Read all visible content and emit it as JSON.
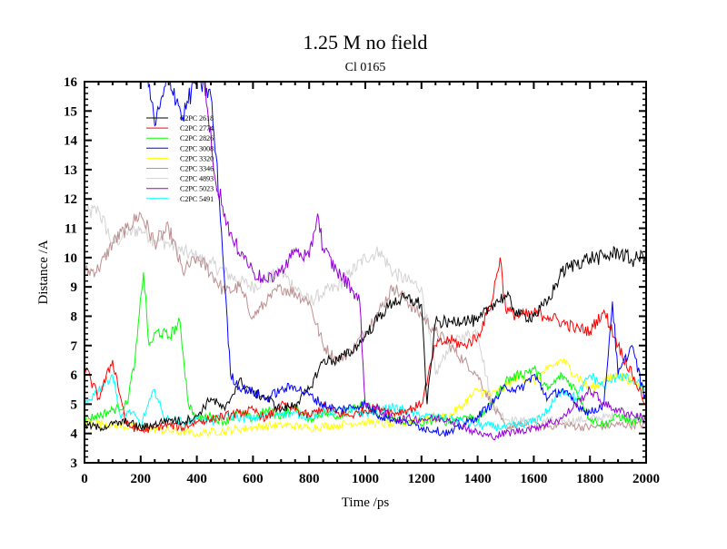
{
  "chart_data": {
    "type": "line",
    "title": "1.25 M no field",
    "subtitle": "Cl 0165",
    "xlabel": "Time /ps",
    "ylabel": "Distance /A",
    "xlim": [
      0,
      2000
    ],
    "ylim": [
      3,
      16
    ],
    "xticks": [
      0,
      200,
      400,
      600,
      800,
      1000,
      1200,
      1400,
      1600,
      1800,
      2000
    ],
    "yticks": [
      3,
      4,
      5,
      6,
      7,
      8,
      9,
      10,
      11,
      12,
      13,
      14,
      15,
      16
    ],
    "grid": false,
    "legend_position": "top-left",
    "series": [
      {
        "name": "C2PC 2618",
        "color": "#000000",
        "x": [
          0,
          50,
          100,
          150,
          200,
          250,
          300,
          350,
          400,
          450,
          500,
          550,
          600,
          650,
          700,
          750,
          800,
          850,
          900,
          950,
          1000,
          1050,
          1100,
          1150,
          1200,
          1220,
          1250,
          1300,
          1350,
          1400,
          1450,
          1500,
          1550,
          1600,
          1650,
          1700,
          1750,
          1800,
          1850,
          1900,
          1950,
          2000
        ],
        "y": [
          4.3,
          4.2,
          4.3,
          4.4,
          4.2,
          4.3,
          4.5,
          4.4,
          4.6,
          5.2,
          4.8,
          5.8,
          5.4,
          5.2,
          4.8,
          5.0,
          5.5,
          6.5,
          6.5,
          6.8,
          7.3,
          8.0,
          8.5,
          8.6,
          8.4,
          5.0,
          7.8,
          7.8,
          7.9,
          7.8,
          8.4,
          8.7,
          8.0,
          8.0,
          8.5,
          9.5,
          9.8,
          10.0,
          10.0,
          10.2,
          9.9,
          10.1
        ]
      },
      {
        "name": "C2PC 2774",
        "color": "#ff0000",
        "x": [
          0,
          50,
          100,
          150,
          200,
          250,
          300,
          350,
          400,
          450,
          500,
          550,
          600,
          650,
          700,
          750,
          800,
          850,
          900,
          950,
          1000,
          1050,
          1100,
          1150,
          1200,
          1250,
          1300,
          1350,
          1400,
          1450,
          1480,
          1500,
          1550,
          1600,
          1650,
          1700,
          1750,
          1800,
          1850,
          1900,
          1950,
          2000
        ],
        "y": [
          6.3,
          5.2,
          6.5,
          4.3,
          4.1,
          4.2,
          4.3,
          4.2,
          4.4,
          4.5,
          4.6,
          4.7,
          4.8,
          4.5,
          5.0,
          4.8,
          4.6,
          4.9,
          4.7,
          4.6,
          4.8,
          4.9,
          4.7,
          4.8,
          5.0,
          7.0,
          7.2,
          7.0,
          7.3,
          8.5,
          10.0,
          8.2,
          8.0,
          8.1,
          8.0,
          7.8,
          7.6,
          7.5,
          8.2,
          7.0,
          6.0,
          5.0
        ]
      },
      {
        "name": "C2PC 2826",
        "color": "#00ff00",
        "x": [
          0,
          50,
          100,
          150,
          180,
          210,
          230,
          260,
          300,
          340,
          370,
          400,
          450,
          500,
          550,
          600,
          650,
          700,
          750,
          800,
          850,
          900,
          950,
          1000,
          1050,
          1100,
          1150,
          1200,
          1250,
          1300,
          1350,
          1400,
          1450,
          1500,
          1550,
          1600,
          1650,
          1700,
          1750,
          1800,
          1850,
          1900,
          1950,
          2000
        ],
        "y": [
          4.5,
          4.6,
          4.8,
          5.0,
          6.5,
          9.5,
          7.0,
          7.5,
          7.3,
          7.8,
          5.0,
          4.5,
          4.6,
          4.4,
          4.7,
          4.5,
          4.8,
          4.6,
          4.9,
          4.5,
          4.7,
          4.6,
          4.8,
          5.0,
          4.6,
          4.5,
          4.4,
          4.3,
          4.5,
          4.4,
          4.6,
          4.5,
          5.0,
          5.8,
          6.0,
          6.2,
          5.5,
          6.0,
          5.5,
          4.5,
          4.3,
          4.6,
          4.4,
          4.5
        ]
      },
      {
        "name": "C2PC 3008",
        "color": "#0000ff",
        "x": [
          220,
          250,
          280,
          300,
          350,
          400,
          450,
          480,
          500,
          520,
          550,
          600,
          650,
          700,
          750,
          800,
          850,
          900,
          950,
          1000,
          1050,
          1100,
          1150,
          1200,
          1250,
          1300,
          1350,
          1400,
          1450,
          1500,
          1550,
          1600,
          1650,
          1700,
          1750,
          1800,
          1850,
          1880,
          1900,
          1950,
          2000
        ],
        "y": [
          16.5,
          14.5,
          15.5,
          16.2,
          14.8,
          16.2,
          15.5,
          12.0,
          9.0,
          6.0,
          5.6,
          5.4,
          5.2,
          5.5,
          5.6,
          5.3,
          5.0,
          4.8,
          4.9,
          5.0,
          4.6,
          4.5,
          4.4,
          4.2,
          4.1,
          4.0,
          4.3,
          4.6,
          5.0,
          5.6,
          5.5,
          6.0,
          5.2,
          5.5,
          5.0,
          4.7,
          5.0,
          8.5,
          6.0,
          7.0,
          5.0
        ]
      },
      {
        "name": "C2PC 3320",
        "color": "#ffff00",
        "x": [
          0,
          100,
          200,
          300,
          400,
          500,
          600,
          700,
          800,
          900,
          1000,
          1100,
          1200,
          1300,
          1350,
          1400,
          1450,
          1500,
          1550,
          1600,
          1650,
          1700,
          1750,
          1800,
          1850,
          1900,
          1950,
          2000
        ],
        "y": [
          4.4,
          4.3,
          4.2,
          4.1,
          4.0,
          4.1,
          4.2,
          4.3,
          4.2,
          4.3,
          4.4,
          4.3,
          4.5,
          4.6,
          5.0,
          5.5,
          5.3,
          5.6,
          6.0,
          5.8,
          6.2,
          6.5,
          6.0,
          5.5,
          5.8,
          6.0,
          5.8,
          5.5
        ]
      },
      {
        "name": "C2PC 3346",
        "color": "#bc8f8f",
        "x": [
          0,
          50,
          100,
          150,
          200,
          250,
          300,
          350,
          400,
          450,
          500,
          550,
          600,
          650,
          700,
          750,
          800,
          850,
          900,
          950,
          1000,
          1050,
          1100,
          1150,
          1200,
          1250,
          1300,
          1350,
          1400,
          1450,
          1500,
          1550,
          1600,
          1700,
          1800,
          1900,
          2000
        ],
        "y": [
          9.5,
          9.6,
          10.5,
          11.0,
          11.5,
          10.5,
          11.0,
          9.5,
          10.0,
          9.5,
          8.8,
          9.0,
          8.0,
          8.5,
          9.0,
          8.8,
          8.5,
          7.0,
          6.5,
          6.8,
          7.5,
          8.2,
          9.0,
          8.5,
          8.0,
          7.5,
          7.0,
          6.5,
          6.0,
          5.0,
          4.2,
          4.3,
          4.2,
          4.3,
          4.2,
          4.3,
          4.3
        ]
      },
      {
        "name": "C2PC 4893",
        "color": "#d3d3d3",
        "x": [
          0,
          50,
          100,
          150,
          200,
          250,
          300,
          350,
          400,
          450,
          500,
          550,
          600,
          650,
          700,
          750,
          800,
          850,
          900,
          950,
          1000,
          1050,
          1100,
          1150,
          1200,
          1250,
          1300,
          1350,
          1400,
          1450,
          1500,
          1550,
          1600,
          1700,
          1800,
          1900,
          2000
        ],
        "y": [
          11.5,
          11.6,
          10.5,
          10.8,
          11.0,
          10.6,
          10.5,
          10.2,
          10.0,
          9.8,
          9.5,
          9.2,
          9.0,
          9.3,
          9.5,
          9.0,
          8.5,
          8.8,
          9.0,
          9.5,
          10.0,
          10.2,
          9.5,
          9.2,
          9.0,
          6.0,
          7.0,
          7.3,
          7.5,
          5.0,
          4.5,
          4.4,
          4.5,
          4.4,
          4.5,
          4.6,
          4.5
        ]
      },
      {
        "name": "C2PC 5023",
        "color": "#9400d3",
        "x": [
          400,
          430,
          460,
          500,
          530,
          560,
          600,
          650,
          700,
          750,
          800,
          830,
          850,
          900,
          950,
          980,
          1000,
          1050,
          1100,
          1200,
          1300,
          1400,
          1450,
          1500,
          1600,
          1700,
          1800,
          1850,
          1900,
          2000
        ],
        "y": [
          16.5,
          16.0,
          13.0,
          11.5,
          10.5,
          10.2,
          9.5,
          9.2,
          9.6,
          10.2,
          10.0,
          11.5,
          10.3,
          9.5,
          9.0,
          8.5,
          5.0,
          4.8,
          4.5,
          4.5,
          4.5,
          4.0,
          3.9,
          4.0,
          4.2,
          4.5,
          5.5,
          5.0,
          4.8,
          4.5
        ]
      },
      {
        "name": "C2PC 5491",
        "color": "#00ffff",
        "x": [
          0,
          50,
          100,
          130,
          160,
          200,
          250,
          280,
          300,
          350,
          400,
          450,
          500,
          600,
          700,
          800,
          900,
          1000,
          1100,
          1200,
          1300,
          1400,
          1500,
          1550,
          1600,
          1650,
          1700,
          1750,
          1800,
          1850,
          1900,
          1950,
          2000
        ],
        "y": [
          5.0,
          5.5,
          6.0,
          4.5,
          4.8,
          4.3,
          5.5,
          4.6,
          4.5,
          4.4,
          4.5,
          4.4,
          4.6,
          4.5,
          4.7,
          4.6,
          4.8,
          4.7,
          4.9,
          4.6,
          4.5,
          4.3,
          4.2,
          4.3,
          4.4,
          4.8,
          5.5,
          5.2,
          6.0,
          5.6,
          6.0,
          5.8,
          5.5
        ]
      }
    ]
  }
}
